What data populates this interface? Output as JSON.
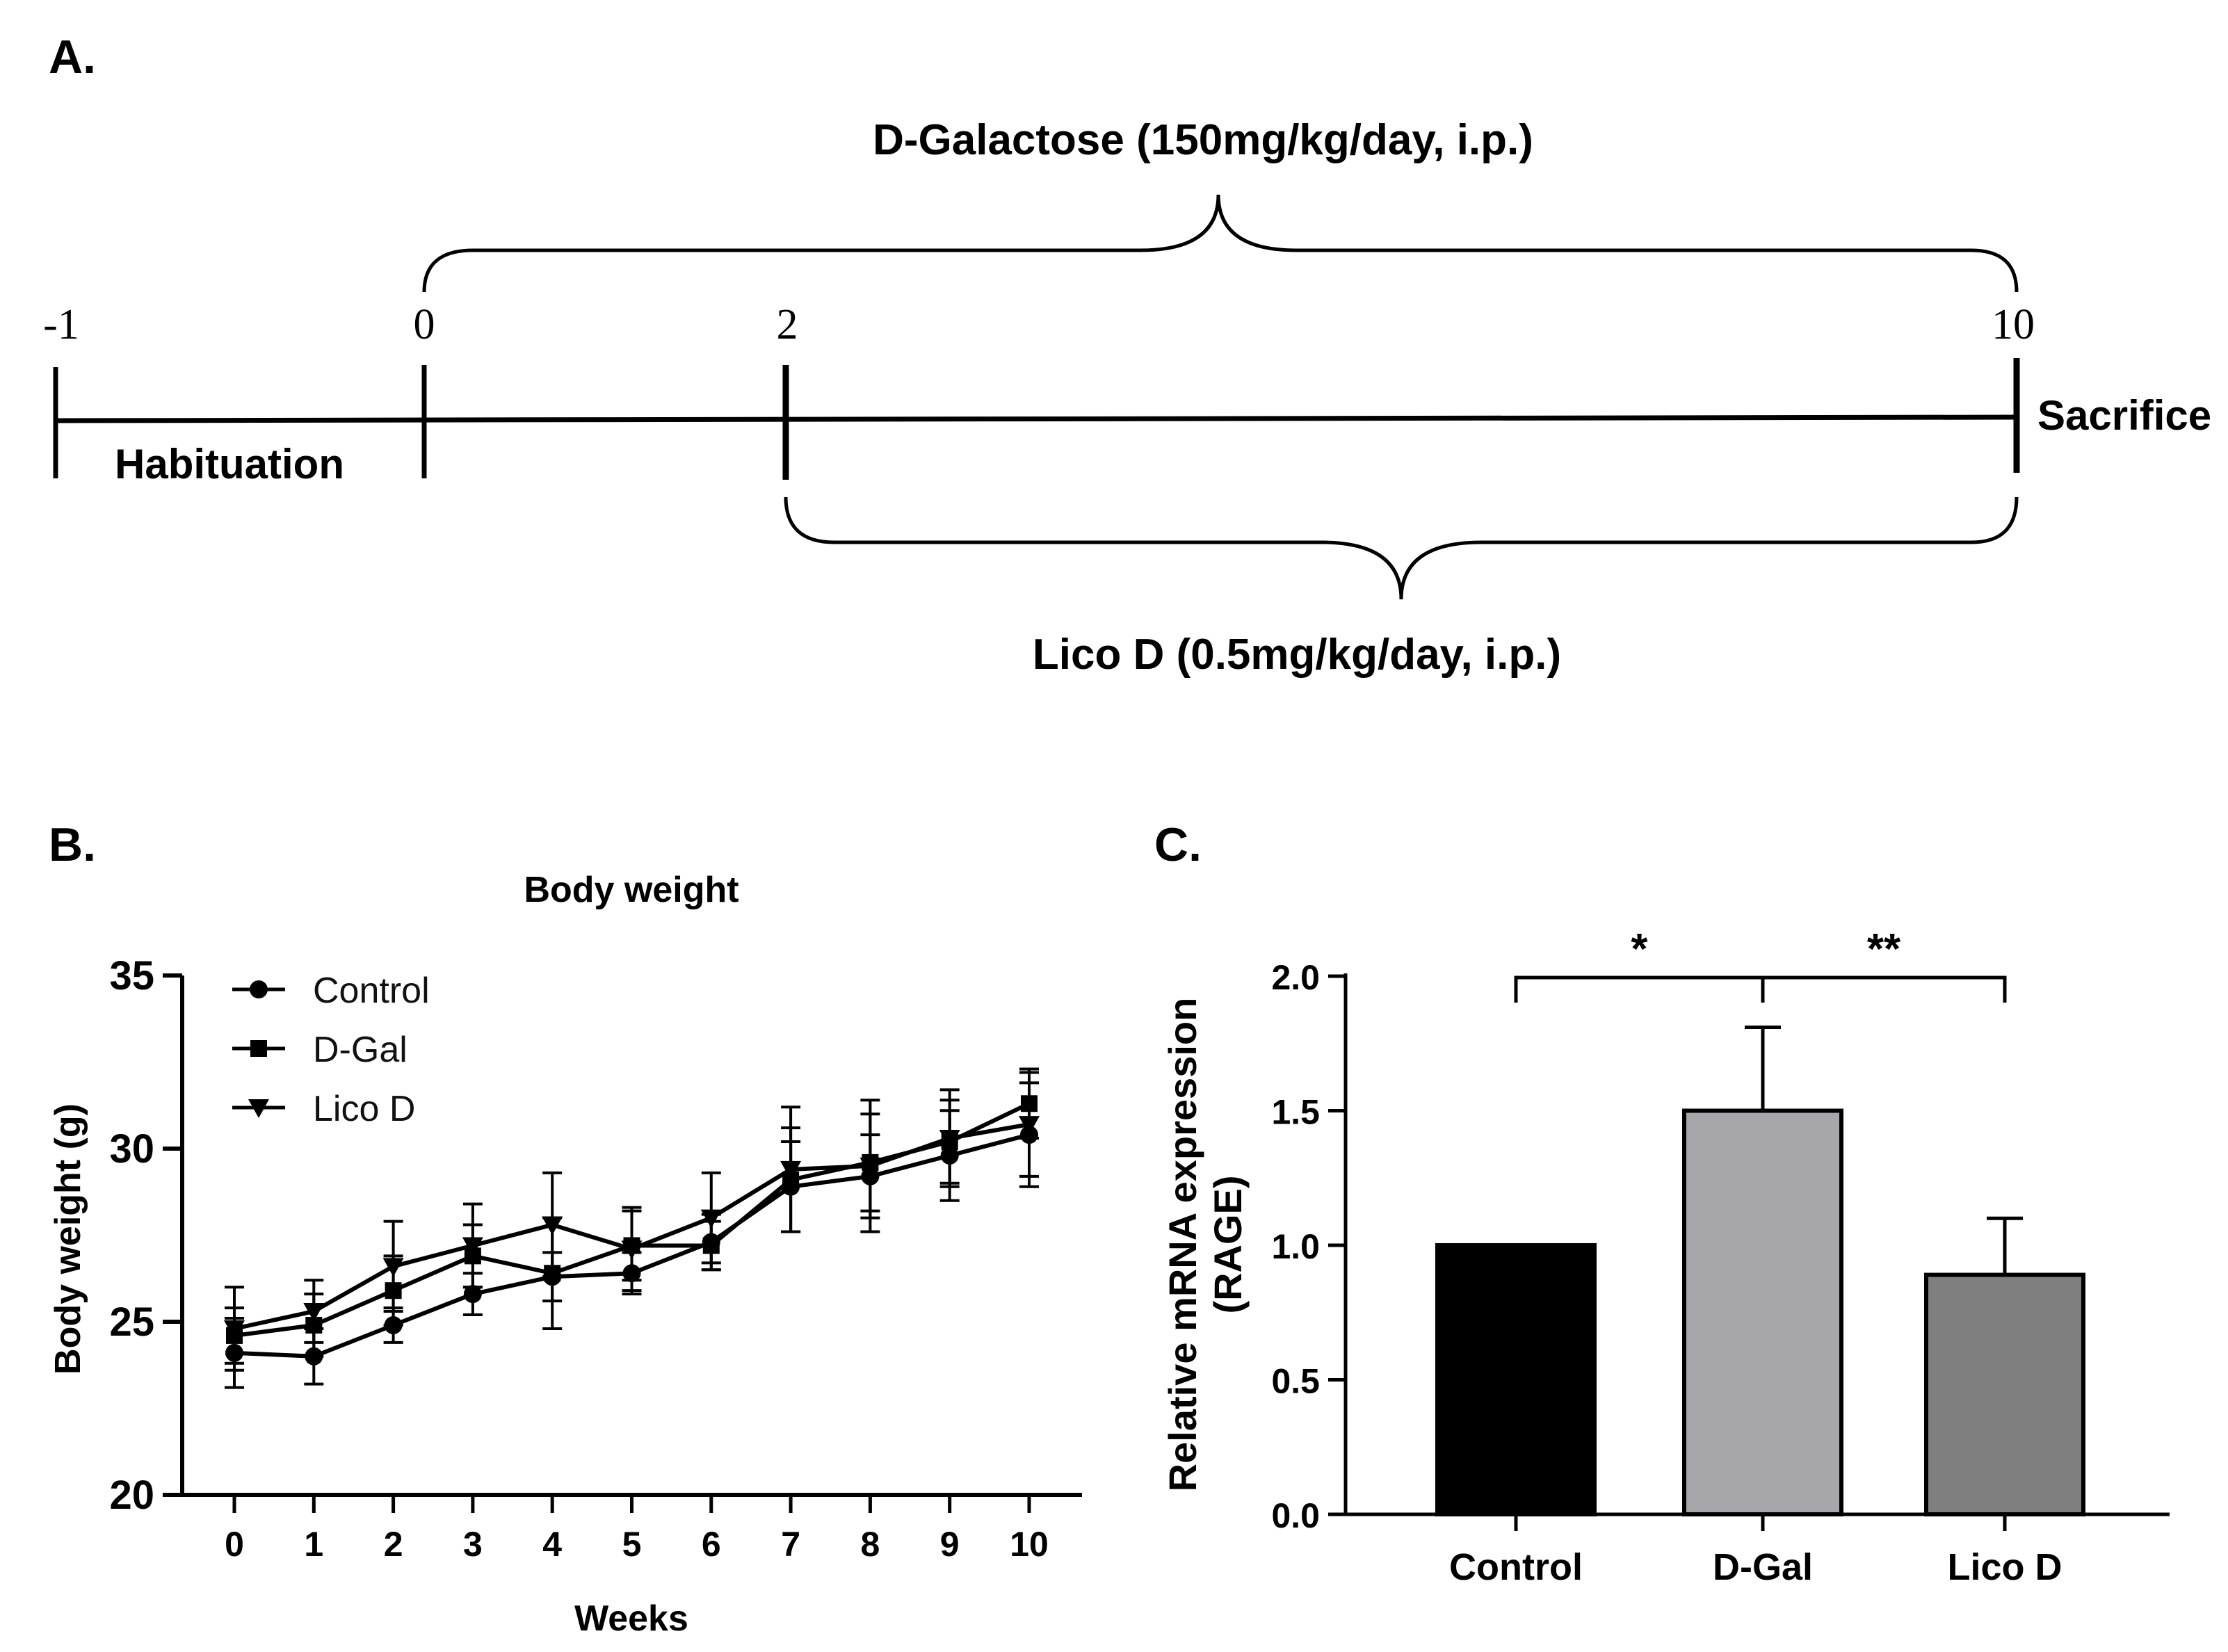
{
  "panels": {
    "a": {
      "letter": "A.",
      "timeline_ticks": [
        "-1",
        "0",
        "2",
        "10"
      ],
      "habituation_label": "Habituation",
      "sacrifice_label": "Sacrifice",
      "dgal_treatment_label": "D-Galactose (150mg/kg/day, i.p.)",
      "licod_treatment_label": "Lico D (0.5mg/kg/day, i.p.)"
    },
    "b": {
      "letter": "B."
    },
    "c": {
      "letter": "C."
    }
  },
  "chart_data": [
    {
      "type": "line",
      "title": "Body weight",
      "xlabel": "Weeks",
      "ylabel": "Body weight (g)",
      "x": [
        0,
        1,
        2,
        3,
        4,
        5,
        6,
        7,
        8,
        9,
        10
      ],
      "xticks": [
        "0",
        "1",
        "2",
        "3",
        "4",
        "5",
        "6",
        "7",
        "8",
        "9",
        "10"
      ],
      "yticks": [
        "20",
        "25",
        "30",
        "35"
      ],
      "ylim": [
        20,
        35
      ],
      "legend_position": "top-left",
      "series": [
        {
          "name": "Control",
          "marker": "circle",
          "values": [
            24.1,
            24.0,
            24.9,
            25.8,
            26.3,
            26.4,
            27.3,
            28.9,
            29.2,
            29.8,
            30.4
          ],
          "errors": [
            1.0,
            0.8,
            0.5,
            0.6,
            0.7,
            0.6,
            0.8,
            1.3,
            1.2,
            1.3,
            1.5
          ]
        },
        {
          "name": "D-Gal",
          "marker": "square",
          "values": [
            24.6,
            24.9,
            25.9,
            26.9,
            26.4,
            27.2,
            27.2,
            29.1,
            29.6,
            30.2,
            31.3
          ],
          "errors": [
            0.8,
            0.9,
            1.0,
            0.9,
            1.6,
            1.0,
            0.7,
            1.5,
            1.4,
            1.2,
            1.0
          ]
        },
        {
          "name": "Lico D",
          "marker": "triangle-down",
          "values": [
            24.8,
            25.3,
            26.6,
            27.2,
            27.8,
            27.1,
            28.0,
            29.4,
            29.5,
            30.3,
            30.7
          ],
          "errors": [
            1.2,
            0.9,
            1.3,
            1.2,
            1.5,
            1.2,
            1.3,
            1.8,
            1.9,
            1.4,
            1.5
          ]
        }
      ]
    },
    {
      "type": "bar",
      "title": "",
      "xlabel": "",
      "ylabel_line1": "Relative mRNA expression",
      "ylabel_line2": "(RAGE)",
      "categories": [
        "Control",
        "D-Gal",
        "Lico D"
      ],
      "values": [
        1.0,
        1.5,
        0.89
      ],
      "errors": [
        0.0,
        0.31,
        0.21
      ],
      "colors": [
        "#000000",
        "#a7a7ab",
        "#7f7f7f"
      ],
      "yticks": [
        "0.0",
        "0.5",
        "1.0",
        "1.5",
        "2.0"
      ],
      "ylim": [
        0,
        2.0
      ],
      "significance": [
        {
          "from": 0,
          "to": 1,
          "label": "*"
        },
        {
          "from": 1,
          "to": 2,
          "label": "**"
        }
      ]
    }
  ]
}
